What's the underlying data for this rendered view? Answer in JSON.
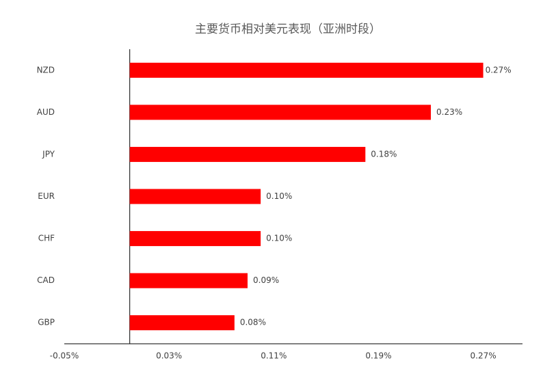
{
  "chart_data": {
    "type": "bar",
    "orientation": "horizontal",
    "title": "主要货币相对美元表现（亚洲时段）",
    "categories": [
      "NZD",
      "AUD",
      "JPY",
      "EUR",
      "CHF",
      "CAD",
      "GBP"
    ],
    "values": [
      0.27,
      0.23,
      0.18,
      0.1,
      0.1,
      0.09,
      0.08
    ],
    "value_labels": [
      "0.27%",
      "0.23%",
      "0.18%",
      "0.10%",
      "0.10%",
      "0.09%",
      "0.08%"
    ],
    "color": "#ff0000",
    "xlim": [
      -0.05,
      0.3
    ],
    "xticks": [
      {
        "value": -0.05,
        "label": "-0.05%"
      },
      {
        "value": 0.03,
        "label": "0.03%"
      },
      {
        "value": 0.11,
        "label": "0.11%"
      },
      {
        "value": 0.19,
        "label": "0.19%"
      },
      {
        "value": 0.27,
        "label": "0.27%"
      }
    ],
    "grid": false
  }
}
